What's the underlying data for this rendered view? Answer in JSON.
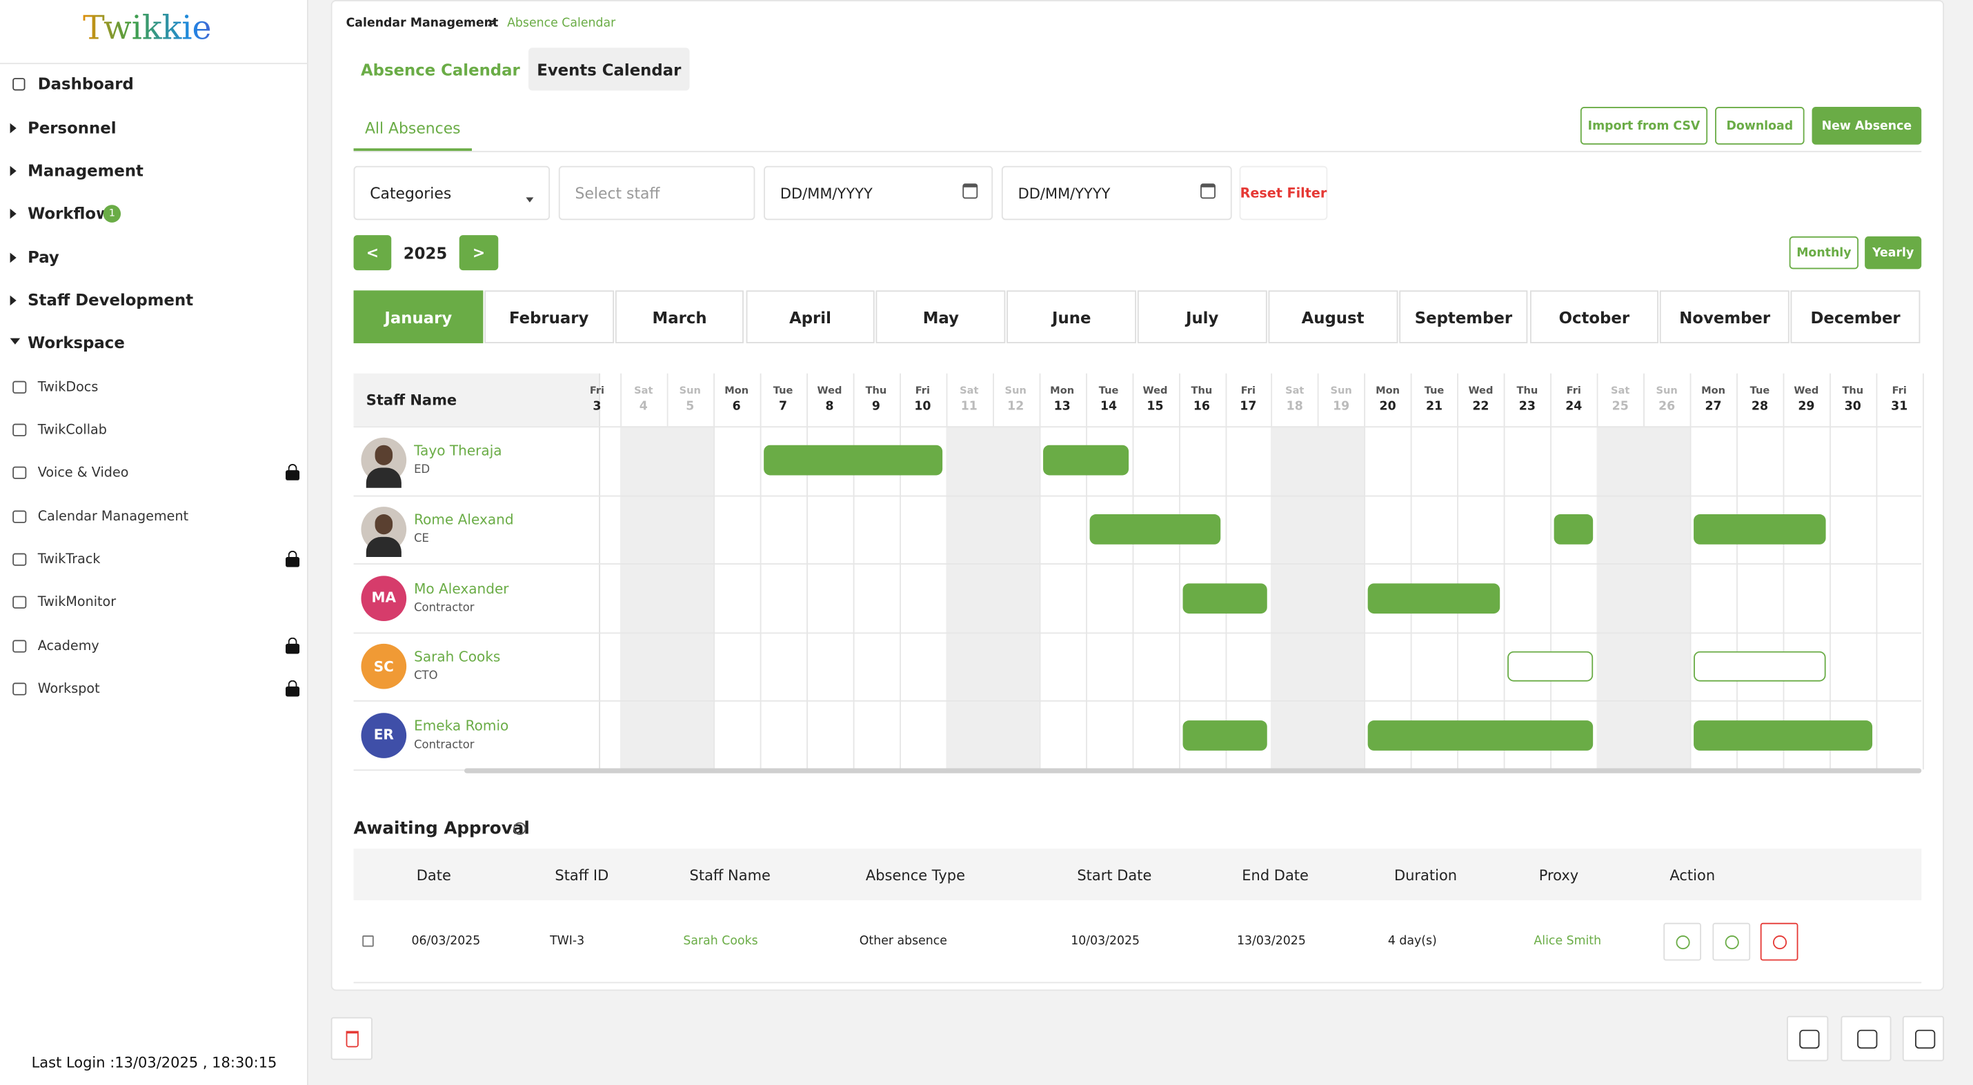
{
  "logo": "Twikkie",
  "sidebar": {
    "nav": [
      {
        "label": "Dashboard"
      },
      {
        "label": "Personnel"
      },
      {
        "label": "Management"
      },
      {
        "label": "Workflow",
        "badge": 1
      },
      {
        "label": "Pay"
      },
      {
        "label": "Staff Development"
      },
      {
        "label": "Workspace",
        "expanded": true
      }
    ],
    "workspace_items": [
      {
        "label": "TwikDocs"
      },
      {
        "label": "TwikCollab"
      },
      {
        "label": "Voice & Video",
        "locked": true
      },
      {
        "label": "Calendar Management"
      },
      {
        "label": "TwikTrack",
        "locked": true
      },
      {
        "label": "TwikMonitor"
      },
      {
        "label": "Academy",
        "locked": true
      },
      {
        "label": "Workspot",
        "locked": true
      }
    ],
    "last_login": "Last Login :13/03/2025 , 18:30:15"
  },
  "breadcrumb": [
    "Calendar Management",
    ">",
    "Absence Calendar"
  ],
  "tabs": [
    "Absence Calendar",
    "Events Calendar"
  ],
  "subtab": "All Absences",
  "actions": [
    "Import from CSV",
    "Download",
    "New Absence"
  ],
  "filters": {
    "category": "Categories",
    "staff": "Select staff",
    "date_from": "DD/MM/YYYY",
    "date_to": "DD/MM/YYYY",
    "reset": "Reset Filter"
  },
  "year_nav": {
    "prev": "<",
    "year": 2025,
    "next": ">"
  },
  "views": [
    "Monthly",
    "Yearly"
  ],
  "months": [
    "January",
    "February",
    "March",
    "April",
    "May",
    "June",
    "July",
    "August",
    "September",
    "October",
    "November",
    "December"
  ],
  "calendar": {
    "header": "Staff Name",
    "days": [
      {
        "dow": "Fri",
        "day": 3
      },
      {
        "dow": "Sat",
        "day": 4
      },
      {
        "dow": "Sun",
        "day": 5
      },
      {
        "dow": "Mon",
        "day": 6
      },
      {
        "dow": "Tue",
        "day": 7
      },
      {
        "dow": "Wed",
        "day": 8
      },
      {
        "dow": "Thu",
        "day": 9
      },
      {
        "dow": "Fri",
        "day": 10
      },
      {
        "dow": "Sat",
        "day": 11
      },
      {
        "dow": "Sun",
        "day": 12
      },
      {
        "dow": "Mon",
        "day": 13
      },
      {
        "dow": "Tue",
        "day": 14
      },
      {
        "dow": "Wed",
        "day": 15
      },
      {
        "dow": "Thu",
        "day": 16
      },
      {
        "dow": "Fri",
        "day": 17
      },
      {
        "dow": "Sat",
        "day": 18
      },
      {
        "dow": "Sun",
        "day": 19
      },
      {
        "dow": "Mon",
        "day": 20
      },
      {
        "dow": "Tue",
        "day": 21
      },
      {
        "dow": "Wed",
        "day": 22
      },
      {
        "dow": "Thu",
        "day": 23
      },
      {
        "dow": "Fri",
        "day": 24
      },
      {
        "dow": "Sat",
        "day": 25
      },
      {
        "dow": "Sun",
        "day": 26
      },
      {
        "dow": "Mon",
        "day": 27
      },
      {
        "dow": "Tue",
        "day": 28
      },
      {
        "dow": "Wed",
        "day": 29
      },
      {
        "dow": "Thu",
        "day": 30
      },
      {
        "dow": "Fri",
        "day": 31
      }
    ],
    "staff": [
      {
        "name": "Tayo Theraja",
        "role": "ED",
        "absences": [
          {
            "start": 7,
            "end": 10,
            "style": "filled"
          },
          {
            "start": 13,
            "end": 14,
            "style": "filled"
          }
        ]
      },
      {
        "name": "Rome Alexand",
        "role": "CE",
        "absences": [
          {
            "start": 14,
            "end": 16,
            "style": "filled"
          },
          {
            "start": 24,
            "end": 24,
            "style": "filled"
          },
          {
            "start": 27,
            "end": 29,
            "style": "filled"
          }
        ]
      },
      {
        "name": "Mo Alexander",
        "role": "Contractor",
        "initials": "MA",
        "color": "#d63c6b",
        "absences": [
          {
            "start": 16,
            "end": 17,
            "style": "filled"
          },
          {
            "start": 20,
            "end": 22,
            "style": "filled"
          }
        ]
      },
      {
        "name": "Sarah Cooks",
        "role": "CTO",
        "initials": "SC",
        "color": "#f09a35",
        "absences": [
          {
            "start": 23,
            "end": 24,
            "style": "outline"
          },
          {
            "start": 27,
            "end": 29,
            "style": "outline"
          }
        ]
      },
      {
        "name": "Emeka Romio",
        "role": "Contractor",
        "initials": "ER",
        "color": "#3f4fa8",
        "absences": [
          {
            "start": 16,
            "end": 17,
            "style": "filled"
          },
          {
            "start": 20,
            "end": 24,
            "style": "filled"
          },
          {
            "start": 27,
            "end": 30,
            "style": "filled"
          }
        ]
      }
    ]
  },
  "approval": {
    "title": "Awaiting Approval",
    "columns": [
      "Date",
      "Staff ID",
      "Staff Name",
      "Absence Type",
      "Start Date",
      "End Date",
      "Duration",
      "Proxy",
      "Action"
    ],
    "rows": [
      [
        "06/03/2025",
        "TWI-3",
        "Sarah Cooks",
        "Other absence",
        "10/03/2025",
        "13/03/2025",
        "4 day(s)",
        "Alice Smith"
      ]
    ]
  }
}
